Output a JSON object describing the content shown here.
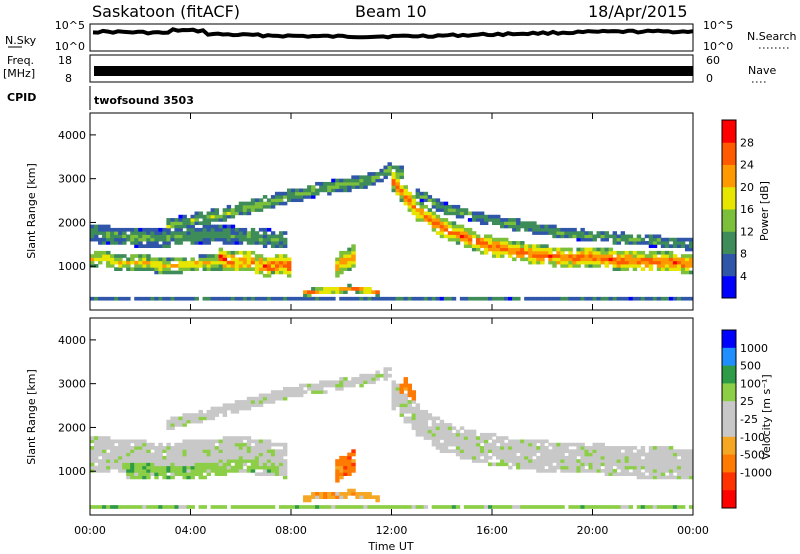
{
  "header": {
    "station": "Saskatoon (fitACF)",
    "beam": "Beam 10",
    "date": "18/Apr/2015"
  },
  "params": {
    "nsky_label": "N.Sky",
    "nsearch_label": "N.Search",
    "freq_label": "Freq.",
    "freq_unit": "[MHz]",
    "nave_label": "Nave",
    "cpid_label": "CPID",
    "cpid_name": "twofsound 3503",
    "left_ticks_nsky": [
      "10^5",
      "10^0"
    ],
    "right_ticks_nsearch": [
      "10^5",
      "10^0"
    ],
    "left_ticks_freq": [
      "18",
      "8"
    ],
    "right_ticks_nave": [
      "60",
      "0"
    ]
  },
  "colors": {
    "power": [
      "#0000ff",
      "#2f56a8",
      "#3d8c5a",
      "#7bbf3a",
      "#e6e600",
      "#ff9900",
      "#ff5a00",
      "#ff0000"
    ],
    "velocity": [
      "#0000ff",
      "#1f8fff",
      "#2e9b47",
      "#8ccf46",
      "#c8c8c8",
      "#c8c8c8",
      "#f5a623",
      "#ff7a00",
      "#ff3300",
      "#ff0000"
    ]
  },
  "chart_data": [
    {
      "type": "heatmap",
      "name": "power",
      "ylabel": "Slant Range [km]",
      "ylim": [
        0,
        4500
      ],
      "yticks": [
        1000,
        2000,
        3000,
        4000
      ],
      "xlim": [
        0,
        24
      ],
      "colorbar": {
        "label": "Power [dB]",
        "ticks": [
          4,
          8,
          12,
          16,
          20,
          24,
          28
        ],
        "range": [
          0,
          32
        ]
      },
      "bands": [
        {
          "t": [
            0,
            0.5,
            1,
            1.5,
            2,
            3,
            4,
            5,
            6,
            7,
            7.8
          ],
          "range_km": [
            1150,
            1200,
            1100,
            1050,
            1100,
            1000,
            1050,
            1100,
            1150,
            1050,
            1000
          ],
          "width_km": 350,
          "power_db": 20
        },
        {
          "t": [
            0,
            1,
            2,
            3,
            4,
            5,
            6,
            7,
            7.8
          ],
          "range_km": [
            1750,
            1700,
            1650,
            1650,
            1700,
            1750,
            1700,
            1650,
            1600
          ],
          "width_km": 400,
          "power_db": 12
        },
        {
          "t": [
            3,
            4,
            5,
            6,
            7,
            8,
            9,
            10,
            11,
            11.5,
            12,
            12.5
          ],
          "range_km": [
            1900,
            2050,
            2150,
            2300,
            2450,
            2600,
            2750,
            2850,
            2950,
            3050,
            3250,
            3100
          ],
          "width_km": 300,
          "power_db": 14
        },
        {
          "t": [
            12,
            13,
            14,
            15,
            16,
            17,
            18,
            19,
            20,
            21,
            22,
            23,
            24
          ],
          "range_km": [
            3000,
            2300,
            1900,
            1650,
            1450,
            1350,
            1250,
            1200,
            1200,
            1150,
            1100,
            1100,
            1050
          ],
          "width_km": 450,
          "power_db": 26
        },
        {
          "t": [
            13,
            14,
            15,
            16,
            17,
            18,
            19,
            20,
            21,
            22,
            23,
            24
          ],
          "range_km": [
            2700,
            2350,
            2200,
            2050,
            1950,
            1850,
            1750,
            1700,
            1650,
            1600,
            1550,
            1500
          ],
          "width_km": 250,
          "power_db": 12
        },
        {
          "t": [
            5.2,
            5.6,
            6,
            6.5,
            7,
            7.5,
            8
          ],
          "range_km": [
            1200,
            1100,
            1150,
            1100,
            1000,
            1050,
            1000
          ],
          "width_km": 450,
          "power_db": 28
        },
        {
          "t": [
            9.8,
            10.2,
            10.6
          ],
          "range_km": [
            1000,
            1150,
            1250
          ],
          "width_km": 500,
          "power_db": 24
        },
        {
          "t": [
            8.5,
            9.5,
            10.5,
            11,
            11.5
          ],
          "range_km": [
            400,
            450,
            500,
            450,
            400
          ],
          "width_km": 150,
          "power_db": 24
        },
        {
          "t": [
            0,
            2,
            4,
            6,
            8,
            10,
            12,
            14,
            16,
            18,
            20,
            22,
            24
          ],
          "range_km": [
            250,
            250,
            250,
            250,
            250,
            250,
            250,
            250,
            250,
            250,
            250,
            250,
            250
          ],
          "width_km": 100,
          "power_db": 8
        }
      ]
    },
    {
      "type": "heatmap",
      "name": "velocity",
      "ylabel": "Slant Range [km]",
      "ylim": [
        0,
        4500
      ],
      "yticks": [
        1000,
        2000,
        3000,
        4000
      ],
      "xlim": [
        0,
        24
      ],
      "xticks": [
        "00:00",
        "04:00",
        "08:00",
        "12:00",
        "16:00",
        "20:00",
        "00:00"
      ],
      "xlabel": "Time UT",
      "colorbar": {
        "label": "Velocity [m s⁻¹]",
        "ticks": [
          "1000",
          "500",
          "100",
          "25",
          "-25",
          "-100",
          "-500",
          "-1000"
        ]
      },
      "bands": [
        {
          "t": [
            0,
            1,
            2,
            3,
            4,
            5,
            6,
            7,
            7.8
          ],
          "range_km": [
            1400,
            1350,
            1300,
            1250,
            1300,
            1350,
            1400,
            1300,
            1250
          ],
          "width_km": 800,
          "vel_class": 4
        },
        {
          "t": [
            1.5,
            2.5,
            3.5,
            4.5,
            5.5,
            6.5,
            7.5
          ],
          "range_km": [
            1100,
            1100,
            1050,
            1100,
            1200,
            1250,
            1150
          ],
          "width_km": 500,
          "vel_class": 3
        },
        {
          "t": [
            3,
            4,
            5,
            6,
            7,
            8,
            9,
            10,
            11,
            12
          ],
          "range_km": [
            2050,
            2200,
            2350,
            2500,
            2650,
            2800,
            2900,
            3000,
            3100,
            3250
          ],
          "width_km": 250,
          "vel_class": 4
        },
        {
          "t": [
            12,
            13,
            14,
            15,
            16,
            17,
            18,
            19,
            20,
            21,
            22,
            23,
            24
          ],
          "range_km": [
            2800,
            2200,
            1800,
            1600,
            1500,
            1400,
            1350,
            1300,
            1300,
            1250,
            1200,
            1200,
            1150
          ],
          "width_km": 700,
          "vel_class": 4
        },
        {
          "t": [
            9.8,
            10.2,
            10.6
          ],
          "range_km": [
            1000,
            1150,
            1250
          ],
          "width_km": 500,
          "vel_class": 7
        },
        {
          "t": [
            8.5,
            9.5,
            10.5,
            11,
            11.5
          ],
          "range_km": [
            400,
            450,
            500,
            450,
            400
          ],
          "width_km": 150,
          "vel_class": 6
        },
        {
          "t": [
            12.3,
            12.6,
            13
          ],
          "range_km": [
            2800,
            3000,
            2600
          ],
          "width_km": 300,
          "vel_class": 7
        },
        {
          "t": [
            0,
            3,
            6,
            9,
            12,
            15,
            18,
            21,
            24
          ],
          "range_km": [
            200,
            200,
            200,
            200,
            200,
            200,
            200,
            200,
            200
          ],
          "width_km": 100,
          "vel_class": 3
        }
      ]
    }
  ]
}
